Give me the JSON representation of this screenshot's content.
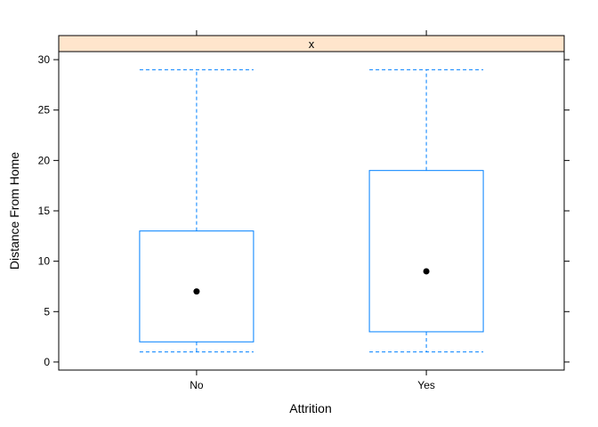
{
  "chart_data": {
    "type": "box",
    "panel_label": "x",
    "xlabel": "Attrition",
    "ylabel": "Distance From Home",
    "categories": [
      "No",
      "Yes"
    ],
    "boxes": [
      {
        "category": "No",
        "whisker_low": 1,
        "q1": 2,
        "median": 7,
        "q3": 13,
        "whisker_high": 29
      },
      {
        "category": "Yes",
        "whisker_low": 1,
        "q1": 3,
        "median": 9,
        "q3": 19,
        "whisker_high": 29
      }
    ],
    "ylim": [
      -0.8,
      30.8
    ],
    "yticks": [
      0,
      5,
      10,
      15,
      20,
      25,
      30
    ],
    "grid": false,
    "colors": {
      "box": "#0080ff",
      "median_dot": "#000000",
      "strip_fill": "#ffe5cc",
      "frame": "#000000"
    }
  }
}
